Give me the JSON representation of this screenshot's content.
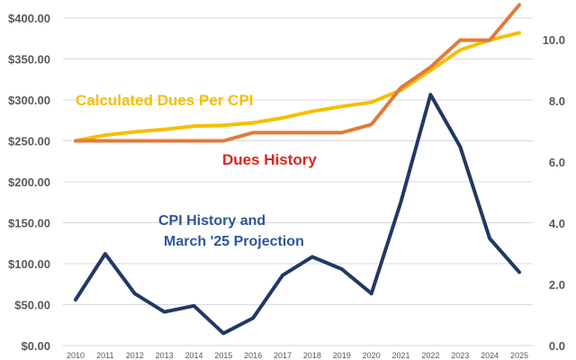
{
  "chart_data": {
    "type": "line",
    "title": "",
    "xlabel": "",
    "ylabel": "",
    "grid": "horizontal",
    "legend": "none",
    "x": [
      "2010",
      "2011",
      "2012",
      "2013",
      "2014",
      "2015",
      "2016",
      "2017",
      "2018",
      "2019",
      "2020",
      "2021",
      "2022",
      "2023",
      "2024",
      "2025"
    ],
    "y_left": {
      "ticks": [
        "$0.00",
        "$50.00",
        "$100.00",
        "$150.00",
        "$200.00",
        "$250.00",
        "$300.00",
        "$350.00",
        "$400.00"
      ],
      "lim": [
        0,
        400
      ]
    },
    "y_right": {
      "ticks": [
        "0.0",
        "2.0",
        "4.0",
        "6.0",
        "8.0",
        "10.0"
      ],
      "lim": [
        0,
        11.5
      ]
    },
    "series": [
      {
        "id": "calc",
        "axis": "left",
        "color": "#F5BF00",
        "values": [
          250,
          257,
          261,
          264,
          268,
          269,
          272,
          278,
          286,
          292,
          297,
          312,
          336,
          361,
          373,
          382
        ]
      },
      {
        "id": "dues",
        "axis": "left",
        "color": "#E07B39",
        "values": [
          250,
          250,
          250,
          250,
          250,
          250,
          260,
          260,
          260,
          260,
          270,
          315,
          340,
          373,
          373,
          416
        ]
      },
      {
        "id": "cpi",
        "axis": "right",
        "color": "#203864",
        "values": [
          1.5,
          3.0,
          1.7,
          1.1,
          1.3,
          0.4,
          0.9,
          2.3,
          2.9,
          2.5,
          1.7,
          4.7,
          8.2,
          6.5,
          3.5,
          2.4
        ]
      }
    ],
    "annotations": {
      "calc": {
        "text": "Calculated Dues Per CPI",
        "color": "#F5BF00"
      },
      "dues": {
        "text": "Dues History",
        "color": "#E0231C"
      },
      "cpi_line1": {
        "text": "CPI History and",
        "color": "#2F5597"
      },
      "cpi_line2": {
        "text": "March '25 Projection",
        "color": "#2F5597"
      }
    }
  }
}
